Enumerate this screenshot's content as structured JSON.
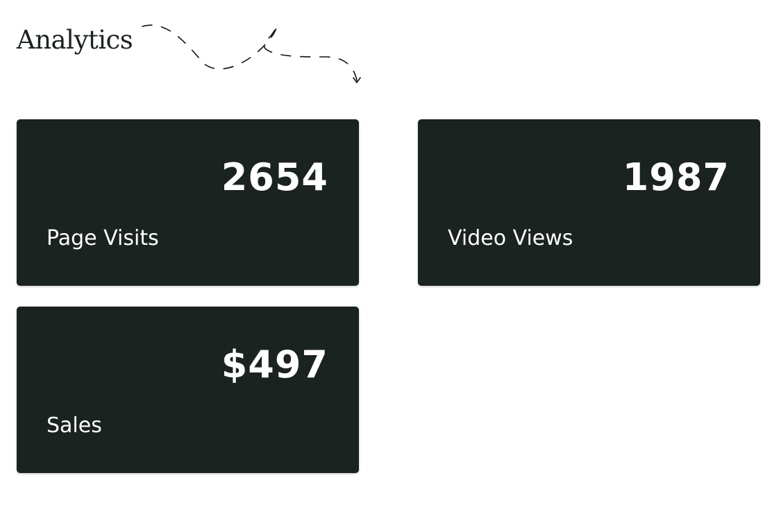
{
  "page": {
    "title": "Analytics"
  },
  "colors": {
    "card_background": "#1b2320",
    "card_text": "#ffffff",
    "title": "#1b2320"
  },
  "cards": [
    {
      "value": "2654",
      "label": "Page Visits"
    },
    {
      "value": "1987",
      "label": "Video Views"
    },
    {
      "value": "$497",
      "label": "Sales"
    }
  ]
}
